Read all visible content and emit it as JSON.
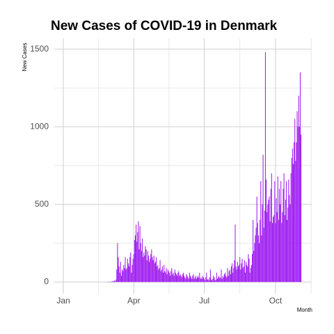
{
  "chart_data": {
    "type": "bar",
    "title": "New Cases of COVID-19 in Denmark",
    "y_label": "New  Cases",
    "x_label": "Month",
    "color": "#a020f0",
    "grid": true,
    "ylim": [
      -75,
      1570
    ],
    "yticks": [
      0,
      500,
      1000,
      1500
    ],
    "categories": [
      "Jan",
      null,
      null,
      null,
      null,
      null,
      null,
      null,
      null,
      null,
      null,
      null,
      null,
      null,
      null,
      null,
      null,
      null,
      null,
      null,
      null,
      null,
      null,
      null,
      null,
      null,
      null,
      null,
      null,
      null,
      null,
      null,
      null,
      null,
      null,
      null,
      null,
      null,
      null,
      null,
      null,
      null,
      null,
      null,
      null,
      null,
      null,
      null,
      null,
      null,
      null,
      null,
      null,
      null,
      null,
      null,
      null,
      null,
      null,
      null,
      null,
      null,
      null,
      null,
      null,
      null,
      null,
      null,
      null,
      null,
      null,
      null,
      null,
      null,
      null,
      null,
      null,
      null,
      null,
      null,
      null,
      null,
      null,
      null,
      null,
      null,
      null,
      null,
      null,
      null,
      null,
      "Apr",
      null,
      null,
      null,
      null,
      null,
      null,
      null,
      null,
      null,
      null,
      null,
      null,
      null,
      null,
      null,
      null,
      null,
      null,
      null,
      null,
      null,
      null,
      null,
      null,
      null,
      null,
      null,
      null,
      null,
      null,
      null,
      null,
      null,
      null,
      null,
      null,
      null,
      null,
      null,
      null,
      null,
      null,
      null,
      null,
      null,
      null,
      null,
      null,
      null,
      null,
      null,
      null,
      null,
      null,
      null,
      null,
      null,
      null,
      null,
      null,
      null,
      null,
      null,
      null,
      null,
      null,
      null,
      null,
      null,
      null,
      null,
      null,
      null,
      null,
      null,
      null,
      null,
      null,
      null,
      null,
      null,
      null,
      null,
      null,
      null,
      null,
      null,
      null,
      null,
      null,
      "Jul",
      null,
      null,
      null,
      null,
      null,
      null,
      null,
      null,
      null,
      null,
      null,
      null,
      null,
      null,
      null,
      null,
      null,
      null,
      null,
      null,
      null,
      null,
      null,
      null,
      null,
      null,
      null,
      null,
      null,
      null,
      null,
      null,
      null,
      null,
      null,
      null,
      null,
      null,
      null,
      null,
      null,
      null,
      null,
      null,
      null,
      null,
      null,
      null,
      null,
      null,
      null,
      null,
      null,
      null,
      null,
      null,
      null,
      null,
      null,
      null,
      null,
      null,
      null,
      null,
      null,
      null,
      null,
      null,
      null,
      null,
      null,
      null,
      null,
      null,
      null,
      null,
      null,
      null,
      null,
      null,
      null,
      null,
      null,
      null,
      null,
      null,
      null,
      null,
      null,
      null,
      null,
      "Oct",
      null,
      null,
      null,
      null,
      null,
      null,
      null,
      null,
      null,
      null,
      null,
      null,
      null,
      null,
      null,
      null,
      null,
      null,
      null,
      null,
      null,
      null,
      null,
      null,
      null,
      null,
      null,
      null,
      null,
      null,
      null,
      null,
      null
    ],
    "values": [
      null,
      null,
      null,
      null,
      null,
      null,
      null,
      null,
      null,
      null,
      null,
      null,
      null,
      null,
      null,
      null,
      null,
      null,
      null,
      null,
      null,
      null,
      null,
      null,
      null,
      null,
      null,
      null,
      null,
      null,
      null,
      null,
      null,
      null,
      null,
      null,
      null,
      null,
      null,
      null,
      null,
      null,
      null,
      null,
      null,
      null,
      null,
      null,
      null,
      null,
      null,
      null,
      null,
      null,
      null,
      null,
      null,
      1,
      0,
      1,
      0,
      1,
      2,
      5,
      4,
      5,
      10,
      4,
      15,
      80,
      250,
      160,
      100,
      60,
      130,
      40,
      80,
      70,
      110,
      90,
      160,
      80,
      90,
      150,
      120,
      100,
      160,
      190,
      60,
      110,
      150,
      180,
      270,
      300,
      370,
      260,
      320,
      390,
      210,
      360,
      250,
      200,
      280,
      160,
      190,
      170,
      230,
      210,
      140,
      200,
      170,
      130,
      150,
      180,
      210,
      160,
      140,
      170,
      120,
      130,
      160,
      100,
      110,
      80,
      90,
      140,
      70,
      80,
      100,
      60,
      110,
      70,
      60,
      90,
      50,
      80,
      70,
      60,
      40,
      70,
      90,
      50,
      60,
      40,
      80,
      60,
      50,
      40,
      60,
      70,
      40,
      50,
      40,
      30,
      50,
      60,
      40,
      30,
      20,
      50,
      40,
      30,
      20,
      60,
      40,
      30,
      20,
      40,
      50,
      20,
      30,
      40,
      20,
      30,
      40,
      30,
      60,
      20,
      30,
      20,
      40,
      30,
      20,
      10,
      30,
      60,
      15,
      20,
      10,
      30,
      80,
      15,
      10,
      20,
      40,
      30,
      10,
      15,
      60,
      20,
      30,
      40,
      25,
      30,
      80,
      20,
      40,
      30,
      50,
      60,
      40,
      30,
      90,
      40,
      70,
      80,
      50,
      100,
      120,
      60,
      90,
      140,
      370,
      100,
      80,
      130,
      100,
      110,
      160,
      80,
      120,
      150,
      90,
      100,
      140,
      60,
      130,
      110,
      100,
      180,
      150,
      60,
      90,
      110,
      180,
      400,
      200,
      250,
      300,
      350,
      550,
      380,
      300,
      250,
      400,
      650,
      300,
      500,
      820,
      350,
      460,
      1480,
      660,
      450,
      500,
      530,
      550,
      390,
      600,
      700,
      380,
      420,
      430,
      650,
      380,
      540,
      450,
      680,
      400,
      600,
      500,
      650,
      380,
      450,
      600,
      700,
      430,
      530,
      650,
      400,
      480,
      660,
      560,
      500,
      700,
      800,
      860,
      760,
      900,
      1050,
      780,
      900,
      1100,
      1000,
      1200,
      1000,
      1350,
      950
    ]
  }
}
